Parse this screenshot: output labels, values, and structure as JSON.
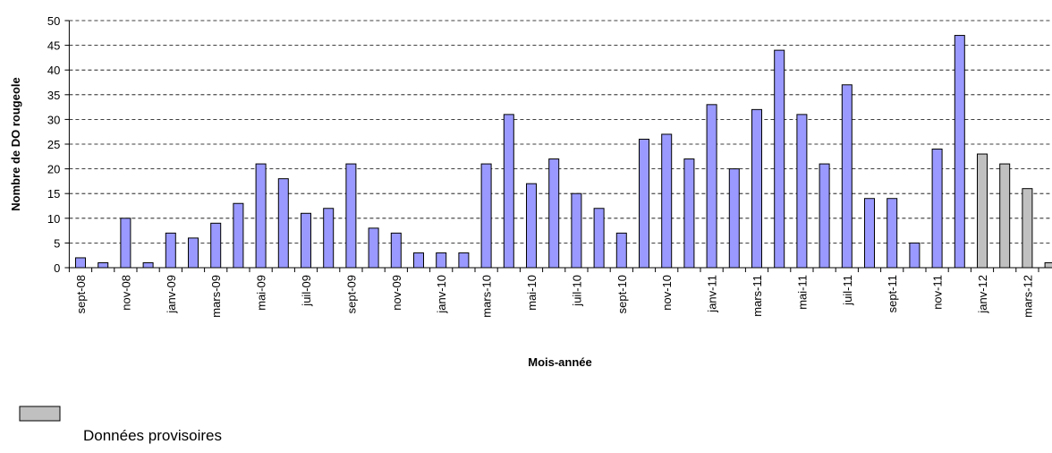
{
  "chart_data": {
    "type": "bar",
    "y_label": "Nombre de DO rougeole",
    "x_label": "Mois-année",
    "categories": [
      "sept-08",
      null,
      "nov-08",
      null,
      "janv-09",
      null,
      "mars-09",
      null,
      "mai-09",
      null,
      "juil-09",
      null,
      "sept-09",
      null,
      "nov-09",
      null,
      "janv-10",
      null,
      "mars-10",
      null,
      "mai-10",
      null,
      "juil-10",
      null,
      "sept-10",
      null,
      "nov-10",
      null,
      "janv-11",
      null,
      "mars-11",
      null,
      "mai-11",
      null,
      "juil-11",
      null,
      "sept-11",
      null,
      "nov-11",
      null,
      "janv-12",
      null,
      "mars-12",
      null
    ],
    "series": [
      {
        "color": "#9999ff",
        "values": [
          2,
          1,
          10,
          1,
          7,
          6,
          9,
          13,
          21,
          18,
          11,
          12,
          21,
          8,
          7,
          3,
          3,
          3,
          21,
          31,
          17,
          22,
          15,
          12,
          7,
          26,
          27,
          22,
          33,
          20,
          32,
          44,
          31,
          21,
          37,
          14,
          14,
          5,
          24,
          47,
          null,
          null,
          null,
          null
        ]
      },
      {
        "name": "Données provisoires",
        "color": "#c0c0c0",
        "values": [
          null,
          null,
          null,
          null,
          null,
          null,
          null,
          null,
          null,
          null,
          null,
          null,
          null,
          null,
          null,
          null,
          null,
          null,
          null,
          null,
          null,
          null,
          null,
          null,
          null,
          null,
          null,
          null,
          null,
          null,
          null,
          null,
          null,
          null,
          null,
          null,
          null,
          null,
          null,
          null,
          23,
          21,
          16,
          1
        ]
      }
    ],
    "ylim": [
      0,
      50
    ],
    "yticks": [
      0,
      5,
      10,
      15,
      20,
      25,
      30,
      35,
      40,
      45,
      50
    ],
    "grid": true
  }
}
